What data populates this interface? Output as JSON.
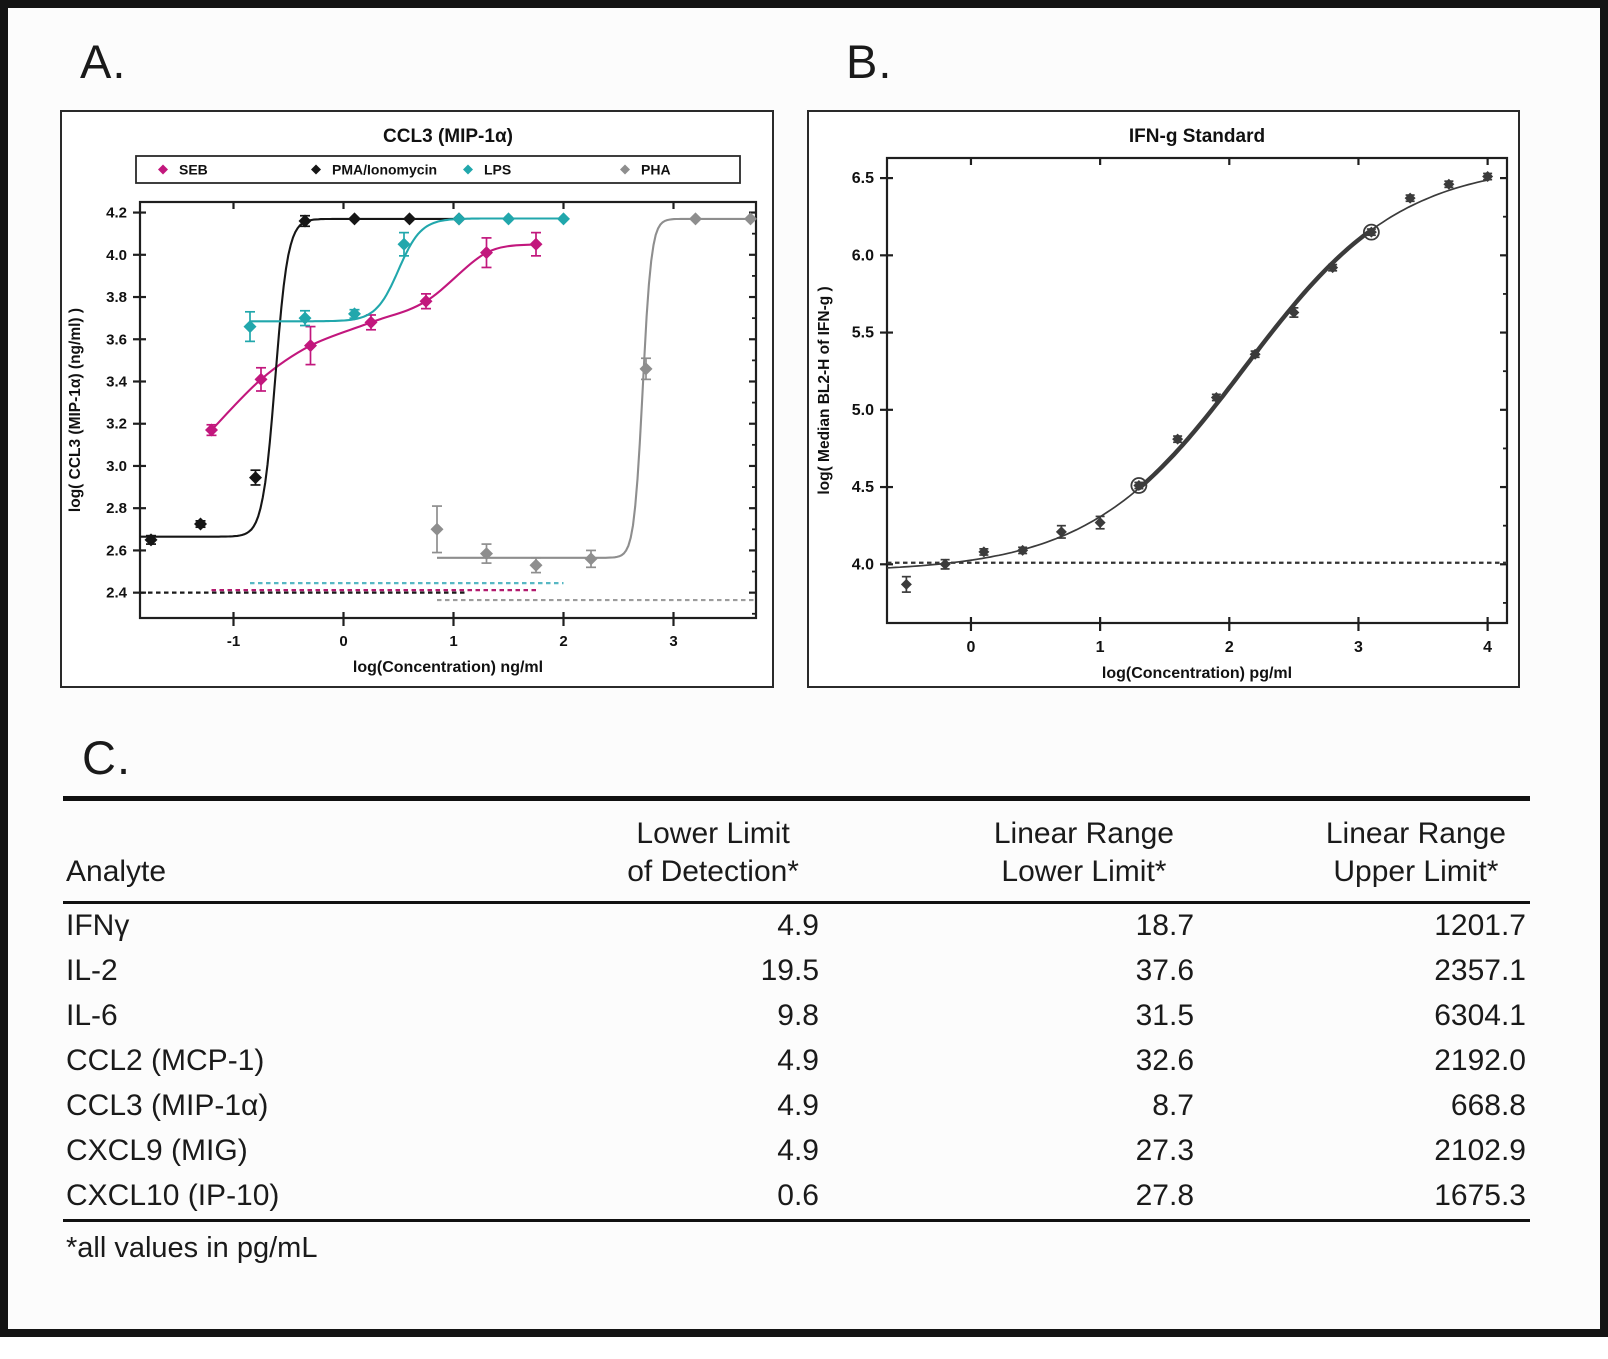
{
  "panels": {
    "a": "A.",
    "b": "B.",
    "c": "C."
  },
  "chart_data": [
    {
      "type": "scatter",
      "panel": "A",
      "title": "CCL3 (MIP-1α)",
      "xlabel": "log(Concentration) ng/ml",
      "ylabel": "log( CCL3 (MIP-1α) (ng/ml) )",
      "xlim": [
        -1.85,
        3.75
      ],
      "ylim": [
        2.28,
        4.25
      ],
      "xticks": [
        -1,
        0,
        1,
        2,
        3
      ],
      "yticks": [
        2.4,
        2.6,
        2.8,
        3.0,
        3.2,
        3.4,
        3.6,
        3.8,
        4.0,
        4.2
      ],
      "grid": false,
      "legend_position": "top",
      "series": [
        {
          "name": "SEB",
          "color": "#c2177d",
          "baseline_color": "#b21a6e",
          "marker": "diamond",
          "points": [
            [
              -1.2,
              3.17,
              0.025
            ],
            [
              -0.75,
              3.41,
              0.055
            ],
            [
              -0.3,
              3.57,
              0.09
            ],
            [
              0.25,
              3.68,
              0.035
            ],
            [
              0.75,
              3.78,
              0.035
            ],
            [
              1.3,
              4.01,
              0.07
            ],
            [
              1.75,
              4.05,
              0.055
            ]
          ],
          "fit": {
            "kind": "smooth"
          },
          "baseline": {
            "y": 2.412,
            "x0": -1.2,
            "x1": 1.75
          }
        },
        {
          "name": "PMA/Ionomycin",
          "color": "#161616",
          "baseline_color": "#1a1a1a",
          "marker": "diamond",
          "points": [
            [
              -1.75,
              2.65,
              0.02
            ],
            [
              -1.3,
              2.725,
              0.015
            ],
            [
              -0.8,
              2.945,
              0.035
            ],
            [
              -0.35,
              4.16,
              0.025
            ],
            [
              0.1,
              4.17,
              0.012
            ],
            [
              0.6,
              4.17,
              0.012
            ],
            [
              1.05,
              4.17,
              0.012
            ]
          ],
          "fit": {
            "kind": "4pl",
            "bottom": 2.665,
            "top": 4.17,
            "ec50": -0.62,
            "hill": 7.5,
            "x0": -1.85,
            "x1": 1.1
          },
          "baseline": {
            "y": 2.4,
            "x0": -1.85,
            "x1": 1.1
          }
        },
        {
          "name": "LPS",
          "color": "#21a7ac",
          "baseline_color": "#56b7c3",
          "marker": "diamond",
          "points": [
            [
              -0.85,
              3.66,
              0.07
            ],
            [
              -0.35,
              3.7,
              0.035
            ],
            [
              0.1,
              3.72,
              0.02
            ],
            [
              0.55,
              4.05,
              0.055
            ],
            [
              1.05,
              4.17,
              0.012
            ],
            [
              1.5,
              4.17,
              0.012
            ],
            [
              2.0,
              4.17,
              0.012
            ]
          ],
          "fit": {
            "kind": "4pl",
            "bottom": 3.685,
            "top": 4.172,
            "ec50": 0.5,
            "hill": 4.2,
            "x0": -0.85,
            "x1": 2.0
          },
          "baseline": {
            "y": 2.445,
            "x0": -0.85,
            "x1": 2.0
          }
        },
        {
          "name": "PHA",
          "color": "#8e8e8e",
          "baseline_color": "#9c9c9c",
          "marker": "diamond",
          "points": [
            [
              0.85,
              2.7,
              0.11
            ],
            [
              1.3,
              2.585,
              0.045
            ],
            [
              1.75,
              2.53,
              0.035
            ],
            [
              2.25,
              2.56,
              0.04
            ],
            [
              2.75,
              3.46,
              0.05
            ],
            [
              3.2,
              4.17,
              0.012
            ],
            [
              3.7,
              4.17,
              0.012
            ]
          ],
          "fit": {
            "kind": "4pl",
            "bottom": 2.565,
            "top": 4.17,
            "ec50": 2.72,
            "hill": 11,
            "x0": 0.85,
            "x1": 3.75
          },
          "baseline": {
            "y": 2.365,
            "x0": 0.85,
            "x1": 3.75
          }
        }
      ]
    },
    {
      "type": "scatter",
      "panel": "B",
      "title": "IFN-g Standard",
      "xlabel": "log(Concentration) pg/ml",
      "ylabel": "log( Median BL2-H of IFN-g )",
      "xlim": [
        -0.65,
        4.15
      ],
      "ylim": [
        3.62,
        6.63
      ],
      "xticks": [
        0,
        1,
        2,
        3,
        4
      ],
      "yticks": [
        4.0,
        4.5,
        5.0,
        5.5,
        6.0,
        6.5
      ],
      "grid": false,
      "series": [
        {
          "name": "IFN-g Standard",
          "color": "#3b3b3b",
          "baseline_color": "#333333",
          "marker": "diamond",
          "points": [
            [
              -0.5,
              3.87,
              0.05
            ],
            [
              -0.2,
              4.0,
              0.03
            ],
            [
              0.1,
              4.08,
              0.02
            ],
            [
              0.4,
              4.09,
              0.02
            ],
            [
              0.7,
              4.21,
              0.04
            ],
            [
              1.0,
              4.27,
              0.04
            ],
            [
              1.3,
              4.51,
              0.02
            ],
            [
              1.6,
              4.81,
              0.02
            ],
            [
              1.9,
              5.08,
              0.02
            ],
            [
              2.2,
              5.36,
              0.02
            ],
            [
              2.5,
              5.63,
              0.03
            ],
            [
              2.8,
              5.92,
              0.02
            ],
            [
              3.1,
              6.15,
              0.02
            ],
            [
              3.4,
              6.37,
              0.02
            ],
            [
              3.7,
              6.46,
              0.02
            ],
            [
              4.0,
              6.51,
              0.02
            ]
          ],
          "fit": {
            "kind": "4pl",
            "bottom": 3.95,
            "top": 6.6,
            "ec50": 2.12,
            "hill": 0.72,
            "x0": -0.65,
            "x1": 4.02
          },
          "linear_range": {
            "x0": 1.3,
            "x1": 3.1
          },
          "open_circles": [
            1.3,
            3.1
          ],
          "baseline": {
            "y": 4.01,
            "x0": -0.65,
            "x1": 4.15
          }
        }
      ]
    }
  ],
  "table": {
    "columns": [
      {
        "line1": "",
        "line2": "Analyte"
      },
      {
        "line1": "Lower Limit",
        "line2": "of Detection*"
      },
      {
        "line1": "Linear Range",
        "line2": "Lower Limit*"
      },
      {
        "line1": "Linear Range",
        "line2": "Upper Limit*"
      }
    ],
    "rows": [
      {
        "analyte": "IFNγ",
        "llod": "4.9",
        "lr_lower": "18.7",
        "lr_upper": "1201.7"
      },
      {
        "analyte": "IL-2",
        "llod": "19.5",
        "lr_lower": "37.6",
        "lr_upper": "2357.1"
      },
      {
        "analyte": "IL-6",
        "llod": "9.8",
        "lr_lower": "31.5",
        "lr_upper": "6304.1"
      },
      {
        "analyte": "CCL2 (MCP-1)",
        "llod": "4.9",
        "lr_lower": "32.6",
        "lr_upper": "2192.0"
      },
      {
        "analyte": "CCL3 (MIP-1α)",
        "llod": "4.9",
        "lr_lower": "8.7",
        "lr_upper": "668.8"
      },
      {
        "analyte": "CXCL9 (MIG)",
        "llod": "4.9",
        "lr_lower": "27.3",
        "lr_upper": "2102.9"
      },
      {
        "analyte": "CXCL10 (IP-10)",
        "llod": "0.6",
        "lr_lower": "27.8",
        "lr_upper": "1675.3"
      }
    ],
    "footnote": "*all values in pg/mL"
  }
}
